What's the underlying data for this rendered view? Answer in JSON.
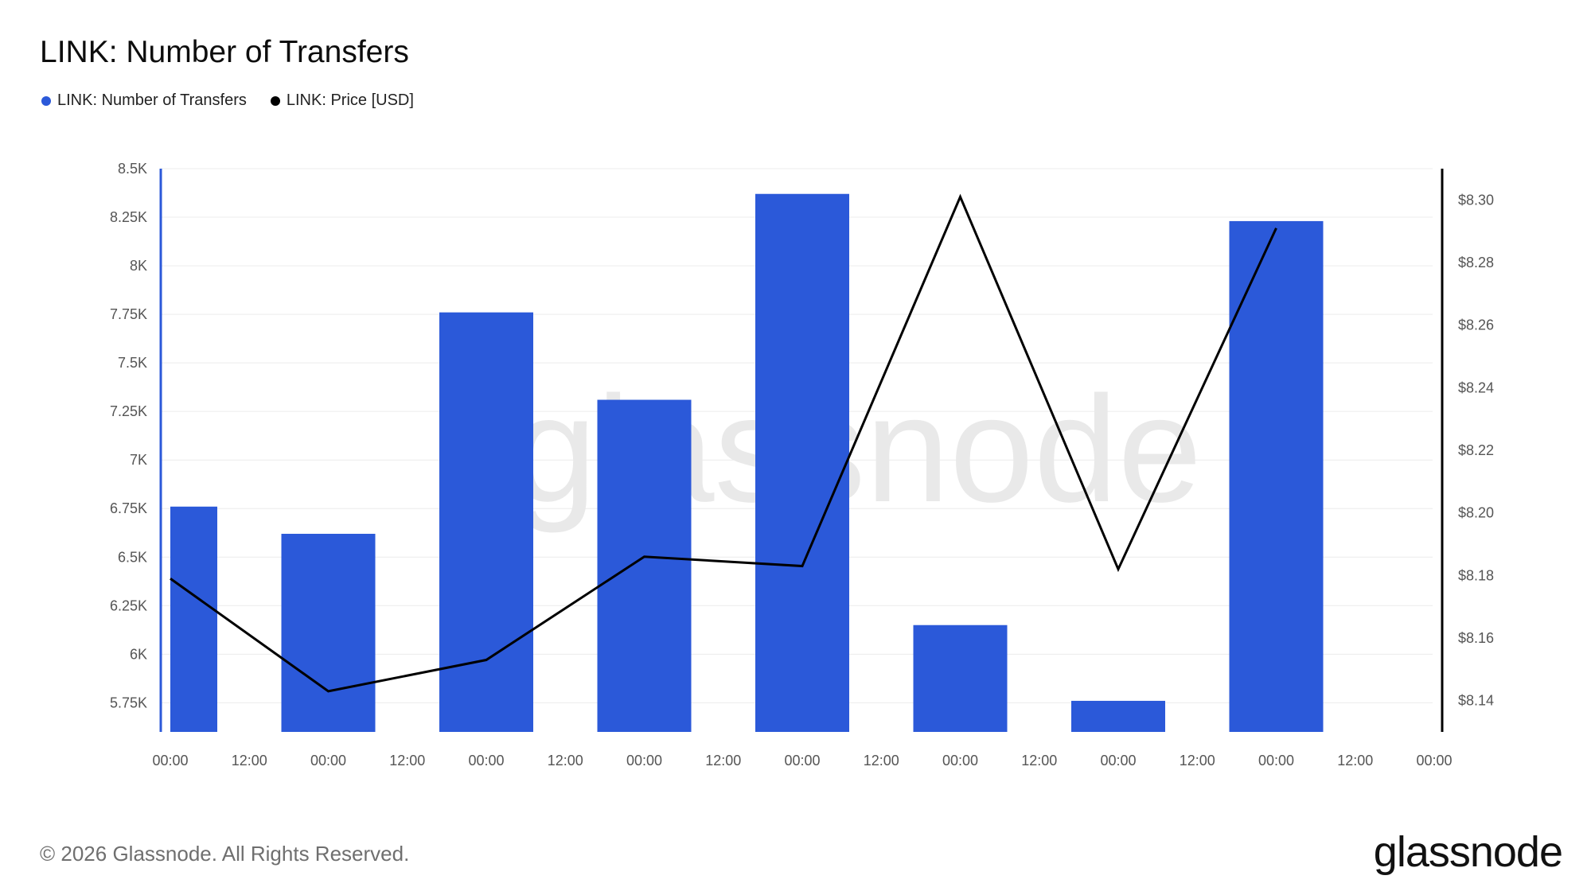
{
  "header": {
    "title": "LINK: Number of Transfers"
  },
  "legend": [
    {
      "label": "LINK: Number of Transfers",
      "color": "#2b59d9"
    },
    {
      "label": "LINK: Price [USD]",
      "color": "#000000"
    }
  ],
  "footer": {
    "copyright": "© 2026 Glassnode. All Rights Reserved.",
    "logo_text": "glassnode"
  },
  "watermark": "glassnode",
  "chart_data": {
    "type": "bar",
    "x_tick_labels": [
      "00:00",
      "12:00",
      "00:00",
      "12:00",
      "00:00",
      "12:00",
      "00:00",
      "12:00",
      "00:00",
      "12:00",
      "00:00",
      "12:00",
      "00:00",
      "12:00",
      "00:00",
      "12:00"
    ],
    "left_axis": {
      "ylim": [
        5600,
        8500
      ],
      "ticks": [
        5750,
        6000,
        6250,
        6500,
        6750,
        7000,
        7250,
        7500,
        7750,
        8000,
        8250,
        8500
      ],
      "tick_labels": [
        "5.75K",
        "6K",
        "6.25K",
        "6.5K",
        "6.75K",
        "7K",
        "7.25K",
        "7.5K",
        "7.75K",
        "8K",
        "8.25K",
        "8.5K"
      ]
    },
    "right_axis": {
      "ylim": [
        8.13,
        8.31
      ],
      "ticks": [
        8.14,
        8.16,
        8.18,
        8.2,
        8.22,
        8.24,
        8.26,
        8.28,
        8.3
      ],
      "tick_labels": [
        "$8.14",
        "$8.16",
        "$8.18",
        "$8.20",
        "$8.22",
        "$8.24",
        "$8.26",
        "$8.28",
        "$8.30"
      ]
    },
    "series": [
      {
        "name": "LINK: Number of Transfers",
        "type": "bar",
        "color": "#2b59d9",
        "axis": "left",
        "points": [
          [
            0,
            6760
          ],
          [
            1,
            6620
          ],
          [
            2,
            7760
          ],
          [
            3,
            7310
          ],
          [
            4,
            8370
          ],
          [
            5,
            6150
          ],
          [
            6,
            5760
          ],
          [
            7,
            8230
          ]
        ]
      },
      {
        "name": "LINK: Price [USD]",
        "type": "line",
        "color": "#000000",
        "axis": "right",
        "points": [
          [
            0,
            8.179
          ],
          [
            1,
            8.143
          ],
          [
            2,
            8.153
          ],
          [
            3,
            8.186
          ],
          [
            4,
            8.183
          ],
          [
            5,
            8.301
          ],
          [
            6,
            8.182
          ],
          [
            7,
            8.291
          ]
        ]
      }
    ],
    "grid": true,
    "legend_position": "top-left"
  }
}
